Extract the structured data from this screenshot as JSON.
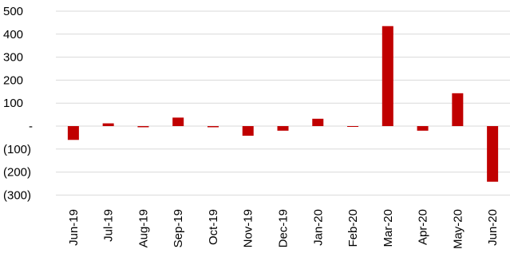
{
  "chart_data": {
    "type": "bar",
    "title": "",
    "xlabel": "",
    "ylabel": "",
    "categories": [
      "Jun-19",
      "Jul-19",
      "Aug-19",
      "Sep-19",
      "Oct-19",
      "Nov-19",
      "Dec-19",
      "Jan-20",
      "Feb-20",
      "Mar-20",
      "Apr-20",
      "May-20",
      "Jun-20"
    ],
    "values": [
      -60,
      12,
      -5,
      37,
      -5,
      -42,
      -20,
      32,
      -3,
      435,
      -20,
      143,
      -242
    ],
    "ylim": [
      -300,
      500
    ],
    "yticks": [
      500,
      400,
      300,
      200,
      100,
      0,
      -100,
      -200,
      -300
    ],
    "ytick_labels": [
      "500",
      "400",
      "300",
      "200",
      "100",
      "-",
      "(100)",
      "(200)",
      "(300)"
    ],
    "grid": true,
    "bar_color": "#c00000",
    "grid_color": "#d9d9d9"
  }
}
